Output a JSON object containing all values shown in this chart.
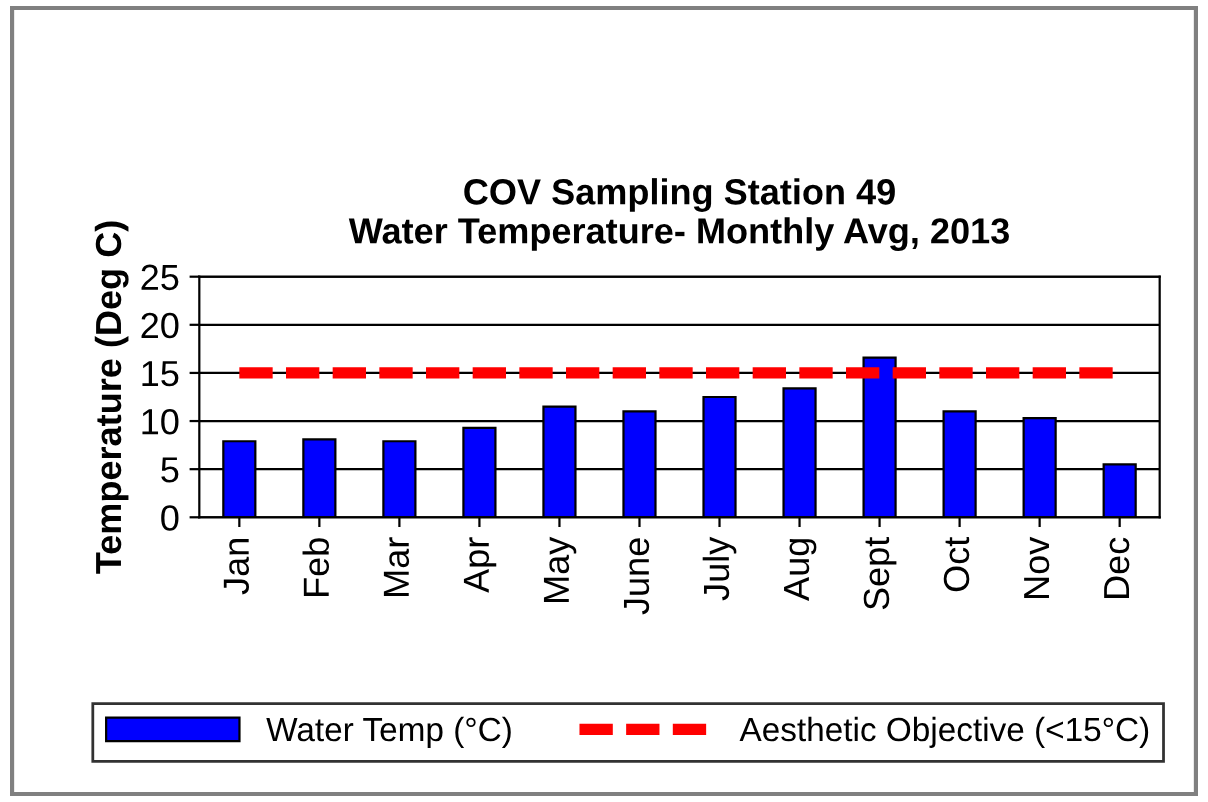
{
  "chart_data": {
    "type": "bar",
    "title": "COV Sampling Station 49\nWater Temperature- Monthly Avg, 2013",
    "ylabel": "Temperature (Deg C)",
    "categories": [
      "Jan",
      "Feb",
      "Mar",
      "Apr",
      "May",
      "June",
      "July",
      "Aug",
      "Sept",
      "Oct",
      "Nov",
      "Dec"
    ],
    "series": [
      {
        "name": "Water Temp (°C)",
        "color": "#0000ff",
        "values": [
          7.9,
          8.1,
          7.9,
          9.3,
          11.5,
          11.0,
          12.5,
          13.4,
          16.6,
          11.0,
          10.3,
          5.5
        ]
      },
      {
        "name": "Aesthetic Objective (<15°C)",
        "type": "line",
        "line_style": "dashed",
        "color": "#ff0000",
        "values": [
          15,
          15,
          15,
          15,
          15,
          15,
          15,
          15,
          15,
          15,
          15,
          15
        ]
      }
    ],
    "ylim": [
      0,
      25
    ],
    "yticks": [
      0,
      5,
      10,
      15,
      20,
      25
    ],
    "grid": "y",
    "legend": "bottom"
  }
}
